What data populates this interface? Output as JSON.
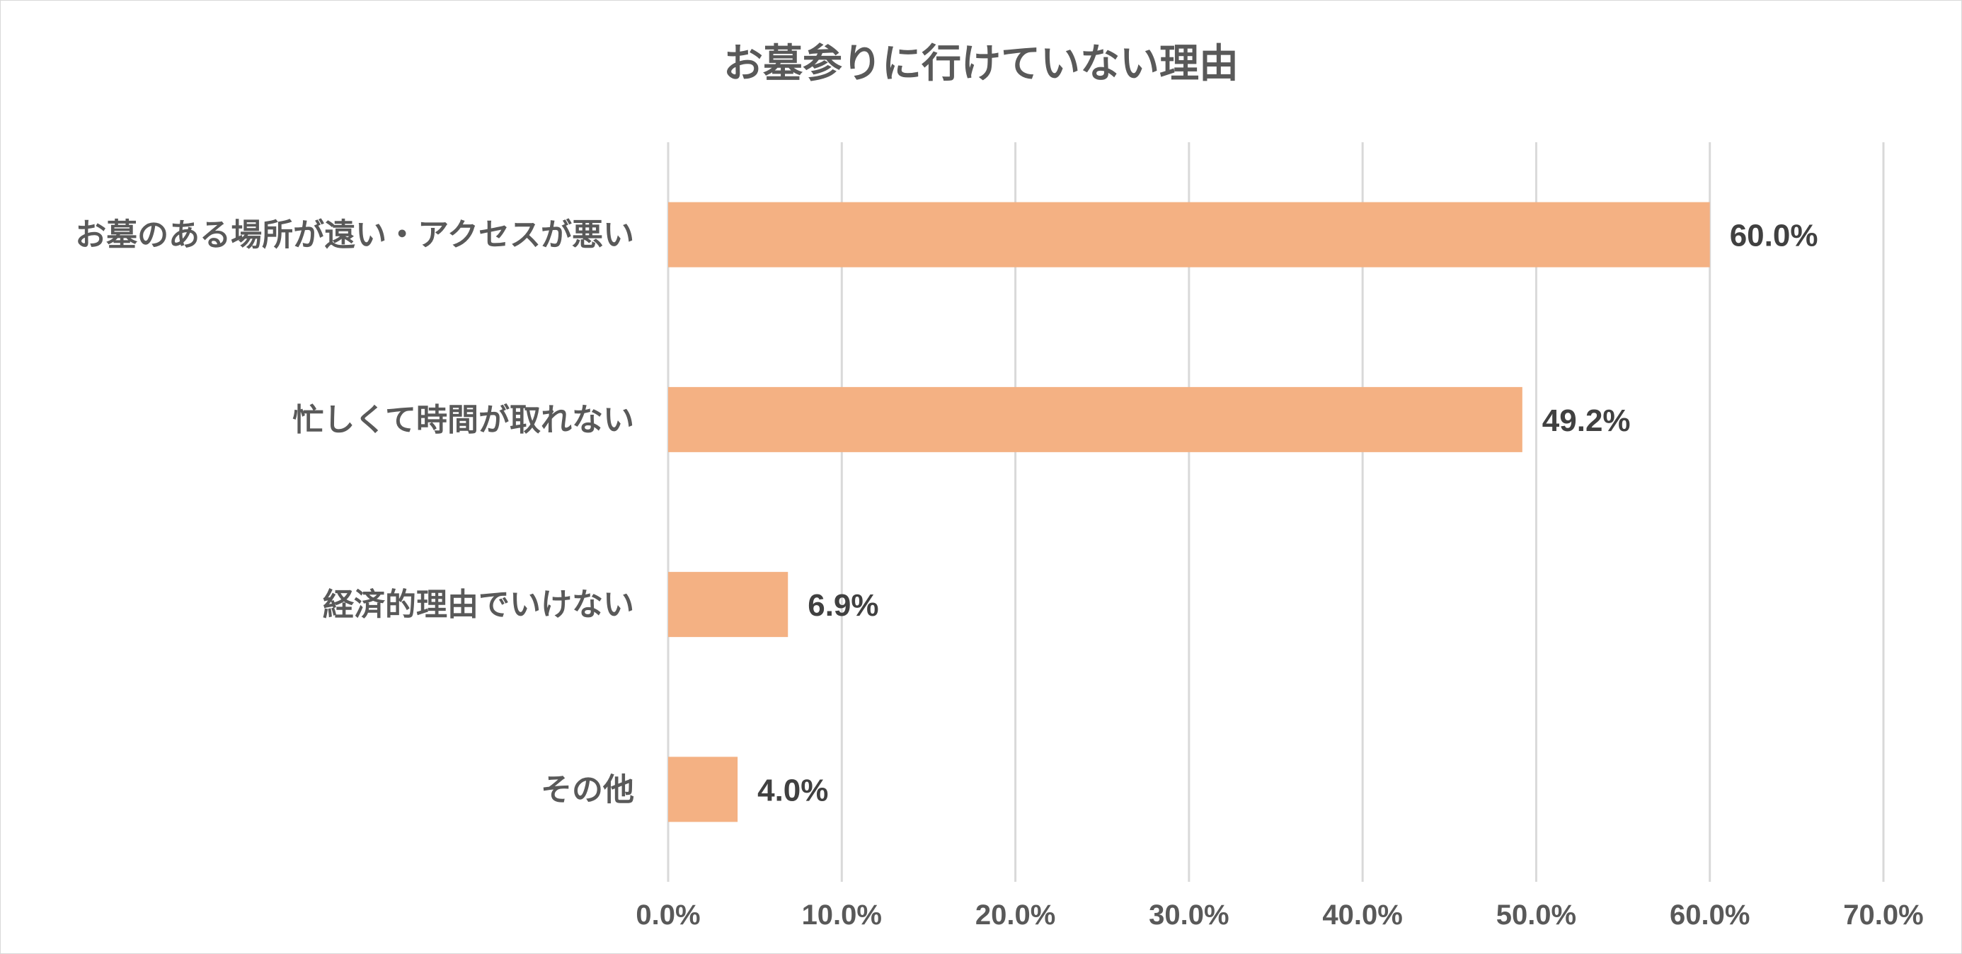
{
  "chart_data": {
    "type": "bar",
    "orientation": "horizontal",
    "title": "お墓参りに行けていない理由",
    "categories": [
      "お墓のある場所が遠い・アクセスが悪い",
      "忙しくて時間が取れない",
      "経済的理由でいけない",
      "その他"
    ],
    "values": [
      60.0,
      49.2,
      6.9,
      4.0
    ],
    "data_labels": [
      "60.0%",
      "49.2%",
      "6.9%",
      "4.0%"
    ],
    "xlim": [
      0,
      70
    ],
    "xticks": [
      0,
      10,
      20,
      30,
      40,
      50,
      60,
      70
    ],
    "xtick_labels": [
      "0.0%",
      "10.0%",
      "20.0%",
      "30.0%",
      "40.0%",
      "50.0%",
      "60.0%",
      "70.0%"
    ],
    "xlabel": "",
    "ylabel": "",
    "grid": "vertical",
    "legend": "none",
    "colors": {
      "bar": "#f4b183",
      "grid": "#d9d9d9",
      "text": "#595959"
    }
  }
}
